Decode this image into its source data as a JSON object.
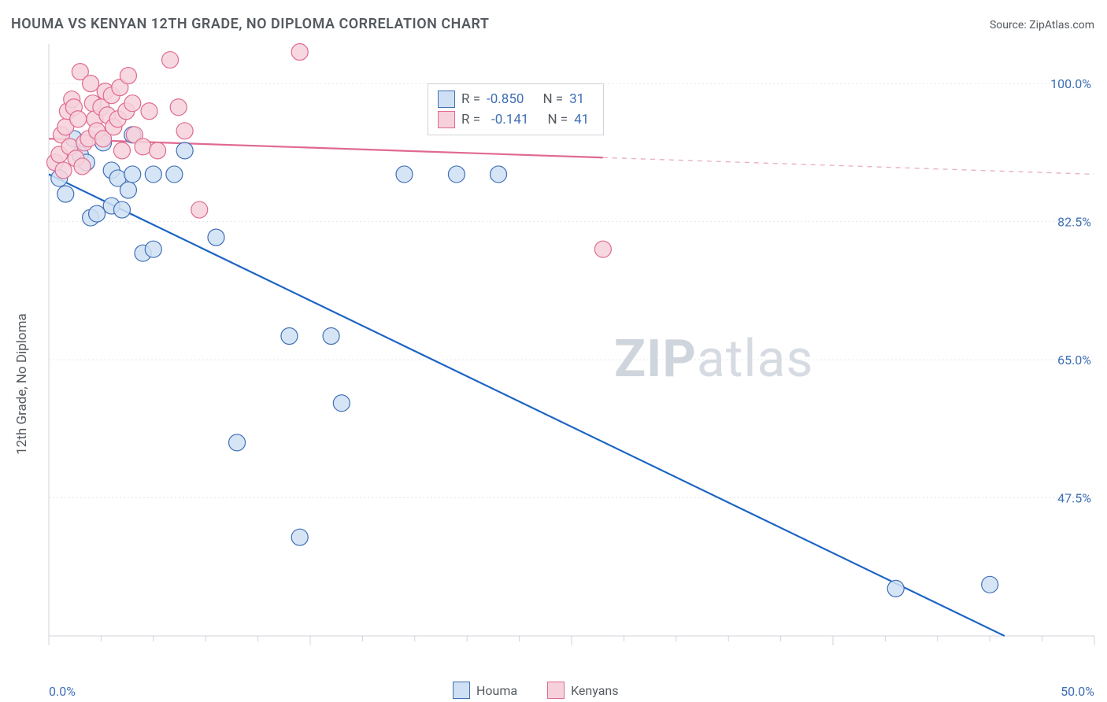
{
  "title": "HOUMA VS KENYAN 12TH GRADE, NO DIPLOMA CORRELATION CHART",
  "source_label": "Source: ",
  "source_name": "ZipAtlas.com",
  "ylabel": "12th Grade, No Diploma",
  "watermark_a": "ZIP",
  "watermark_b": "atlas",
  "legend": {
    "series_a": "Houma",
    "series_b": "Kenyans"
  },
  "stats": {
    "blue": {
      "R_label": "R =",
      "R_value": "-0.850",
      "N_label": "N =",
      "N_value": "31"
    },
    "pink": {
      "R_label": "R =",
      "R_value": "-0.141",
      "N_label": "N =",
      "N_value": "41"
    }
  },
  "chart": {
    "type": "scatter",
    "background_color": "#ffffff",
    "grid_color": "#e4e6ea",
    "axis_color": "#cfd3d9",
    "tick_label_color": "#3f6fb5",
    "xlim": [
      0.0,
      50.0
    ],
    "ylim": [
      30.0,
      105.0
    ],
    "ytick_values": [
      47.5,
      65.0,
      82.5,
      100.0
    ],
    "ytick_labels": [
      "47.5%",
      "65.0%",
      "82.5%",
      "100.0%"
    ],
    "xlim_labels": [
      "0.0%",
      "50.0%"
    ],
    "xtick_minor_step": 2.5,
    "label_fontsize": 16,
    "title_fontsize": 18,
    "marker_radius": 10.5,
    "marker_stroke_width": 1.2,
    "line_width": 2.2,
    "series": {
      "houma": {
        "fill": "#cfe0f5",
        "stroke": "#3f6fb5",
        "opacity": 0.85,
        "trend_line_color": "#1c64c4",
        "trend_line": {
          "x1": 0.0,
          "y1": 88.5,
          "x2": 45.7,
          "y2": 30.0
        },
        "points": [
          [
            0.5,
            88.0
          ],
          [
            0.8,
            86.0
          ],
          [
            1.2,
            93.0
          ],
          [
            1.5,
            91.0
          ],
          [
            1.8,
            90.0
          ],
          [
            2.0,
            83.0
          ],
          [
            2.3,
            83.5
          ],
          [
            2.6,
            92.5
          ],
          [
            3.0,
            89.0
          ],
          [
            3.0,
            84.5
          ],
          [
            3.3,
            88.0
          ],
          [
            3.5,
            84.0
          ],
          [
            3.8,
            86.5
          ],
          [
            4.0,
            93.5
          ],
          [
            4.0,
            88.5
          ],
          [
            4.5,
            78.5
          ],
          [
            5.0,
            79.0
          ],
          [
            5.0,
            88.5
          ],
          [
            6.0,
            88.5
          ],
          [
            6.5,
            91.5
          ],
          [
            8.0,
            80.5
          ],
          [
            9.0,
            54.5
          ],
          [
            11.5,
            68.0
          ],
          [
            12.0,
            42.5
          ],
          [
            13.5,
            68.0
          ],
          [
            14.0,
            59.5
          ],
          [
            17.0,
            88.5
          ],
          [
            19.5,
            88.5
          ],
          [
            21.5,
            88.5
          ],
          [
            40.5,
            36.0
          ],
          [
            45.0,
            36.5
          ]
        ]
      },
      "kenyans": {
        "fill": "#f6d1db",
        "stroke": "#e06a8f",
        "opacity": 0.85,
        "trend_line_color_solid": "#e06a8f",
        "trend_line_color_dash": "#e9b2c0",
        "trend_line": {
          "x1": 0.0,
          "y1": 93.0,
          "x2": 50.0,
          "y2": 88.5
        },
        "solid_x_end": 26.5,
        "points": [
          [
            0.3,
            90.0
          ],
          [
            0.5,
            91.0
          ],
          [
            0.6,
            93.5
          ],
          [
            0.7,
            89.0
          ],
          [
            0.8,
            94.5
          ],
          [
            0.9,
            96.5
          ],
          [
            1.0,
            92.0
          ],
          [
            1.1,
            98.0
          ],
          [
            1.2,
            97.0
          ],
          [
            1.3,
            90.5
          ],
          [
            1.4,
            95.5
          ],
          [
            1.5,
            101.5
          ],
          [
            1.6,
            89.5
          ],
          [
            1.7,
            92.5
          ],
          [
            1.9,
            93.0
          ],
          [
            2.0,
            100.0
          ],
          [
            2.1,
            97.5
          ],
          [
            2.2,
            95.5
          ],
          [
            2.3,
            94.0
          ],
          [
            2.5,
            97.0
          ],
          [
            2.6,
            93.0
          ],
          [
            2.7,
            99.0
          ],
          [
            2.8,
            96.0
          ],
          [
            3.0,
            98.5
          ],
          [
            3.1,
            94.5
          ],
          [
            3.3,
            95.5
          ],
          [
            3.4,
            99.5
          ],
          [
            3.5,
            91.5
          ],
          [
            3.7,
            96.5
          ],
          [
            3.8,
            101.0
          ],
          [
            4.0,
            97.5
          ],
          [
            4.1,
            93.5
          ],
          [
            4.5,
            92.0
          ],
          [
            4.8,
            96.5
          ],
          [
            5.2,
            91.5
          ],
          [
            5.8,
            103.0
          ],
          [
            6.2,
            97.0
          ],
          [
            6.5,
            94.0
          ],
          [
            7.2,
            84.0
          ],
          [
            12.0,
            104.0
          ],
          [
            26.5,
            79.0
          ]
        ]
      }
    }
  }
}
